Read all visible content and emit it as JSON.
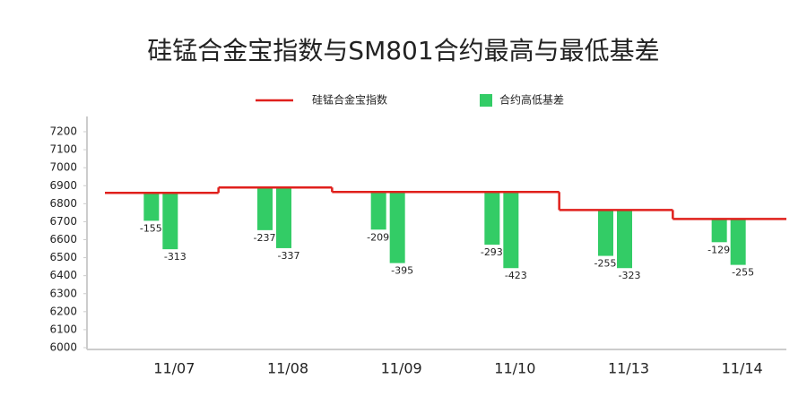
{
  "chart_data": {
    "type": "step-floating-bar",
    "title": "硅锰合金宝指数与SM801合约最高与最低基差",
    "categories": [
      "11/07",
      "11/08",
      "11/09",
      "11/10",
      "11/13",
      "11/14"
    ],
    "series": [
      {
        "name": "硅锰合金宝指数",
        "color": "#e0201c",
        "type": "step",
        "values": [
          6860,
          6890,
          6865,
          6865,
          6765,
          6715
        ]
      },
      {
        "name": "合约高低基差",
        "color": "#33cc66",
        "type": "bar",
        "values": [
          -155,
          -237,
          -209,
          -293,
          -255,
          -129
        ]
      },
      {
        "color": "#33cc66",
        "type": "bar",
        "values": [
          -313,
          -337,
          -395,
          -423,
          -323,
          -255
        ]
      }
    ],
    "ylim": [
      6000,
      7200
    ],
    "yticks": [
      6000,
      6100,
      6200,
      6300,
      6400,
      6500,
      6600,
      6700,
      6800,
      6900,
      7000,
      7100,
      7200
    ],
    "grid": false
  }
}
